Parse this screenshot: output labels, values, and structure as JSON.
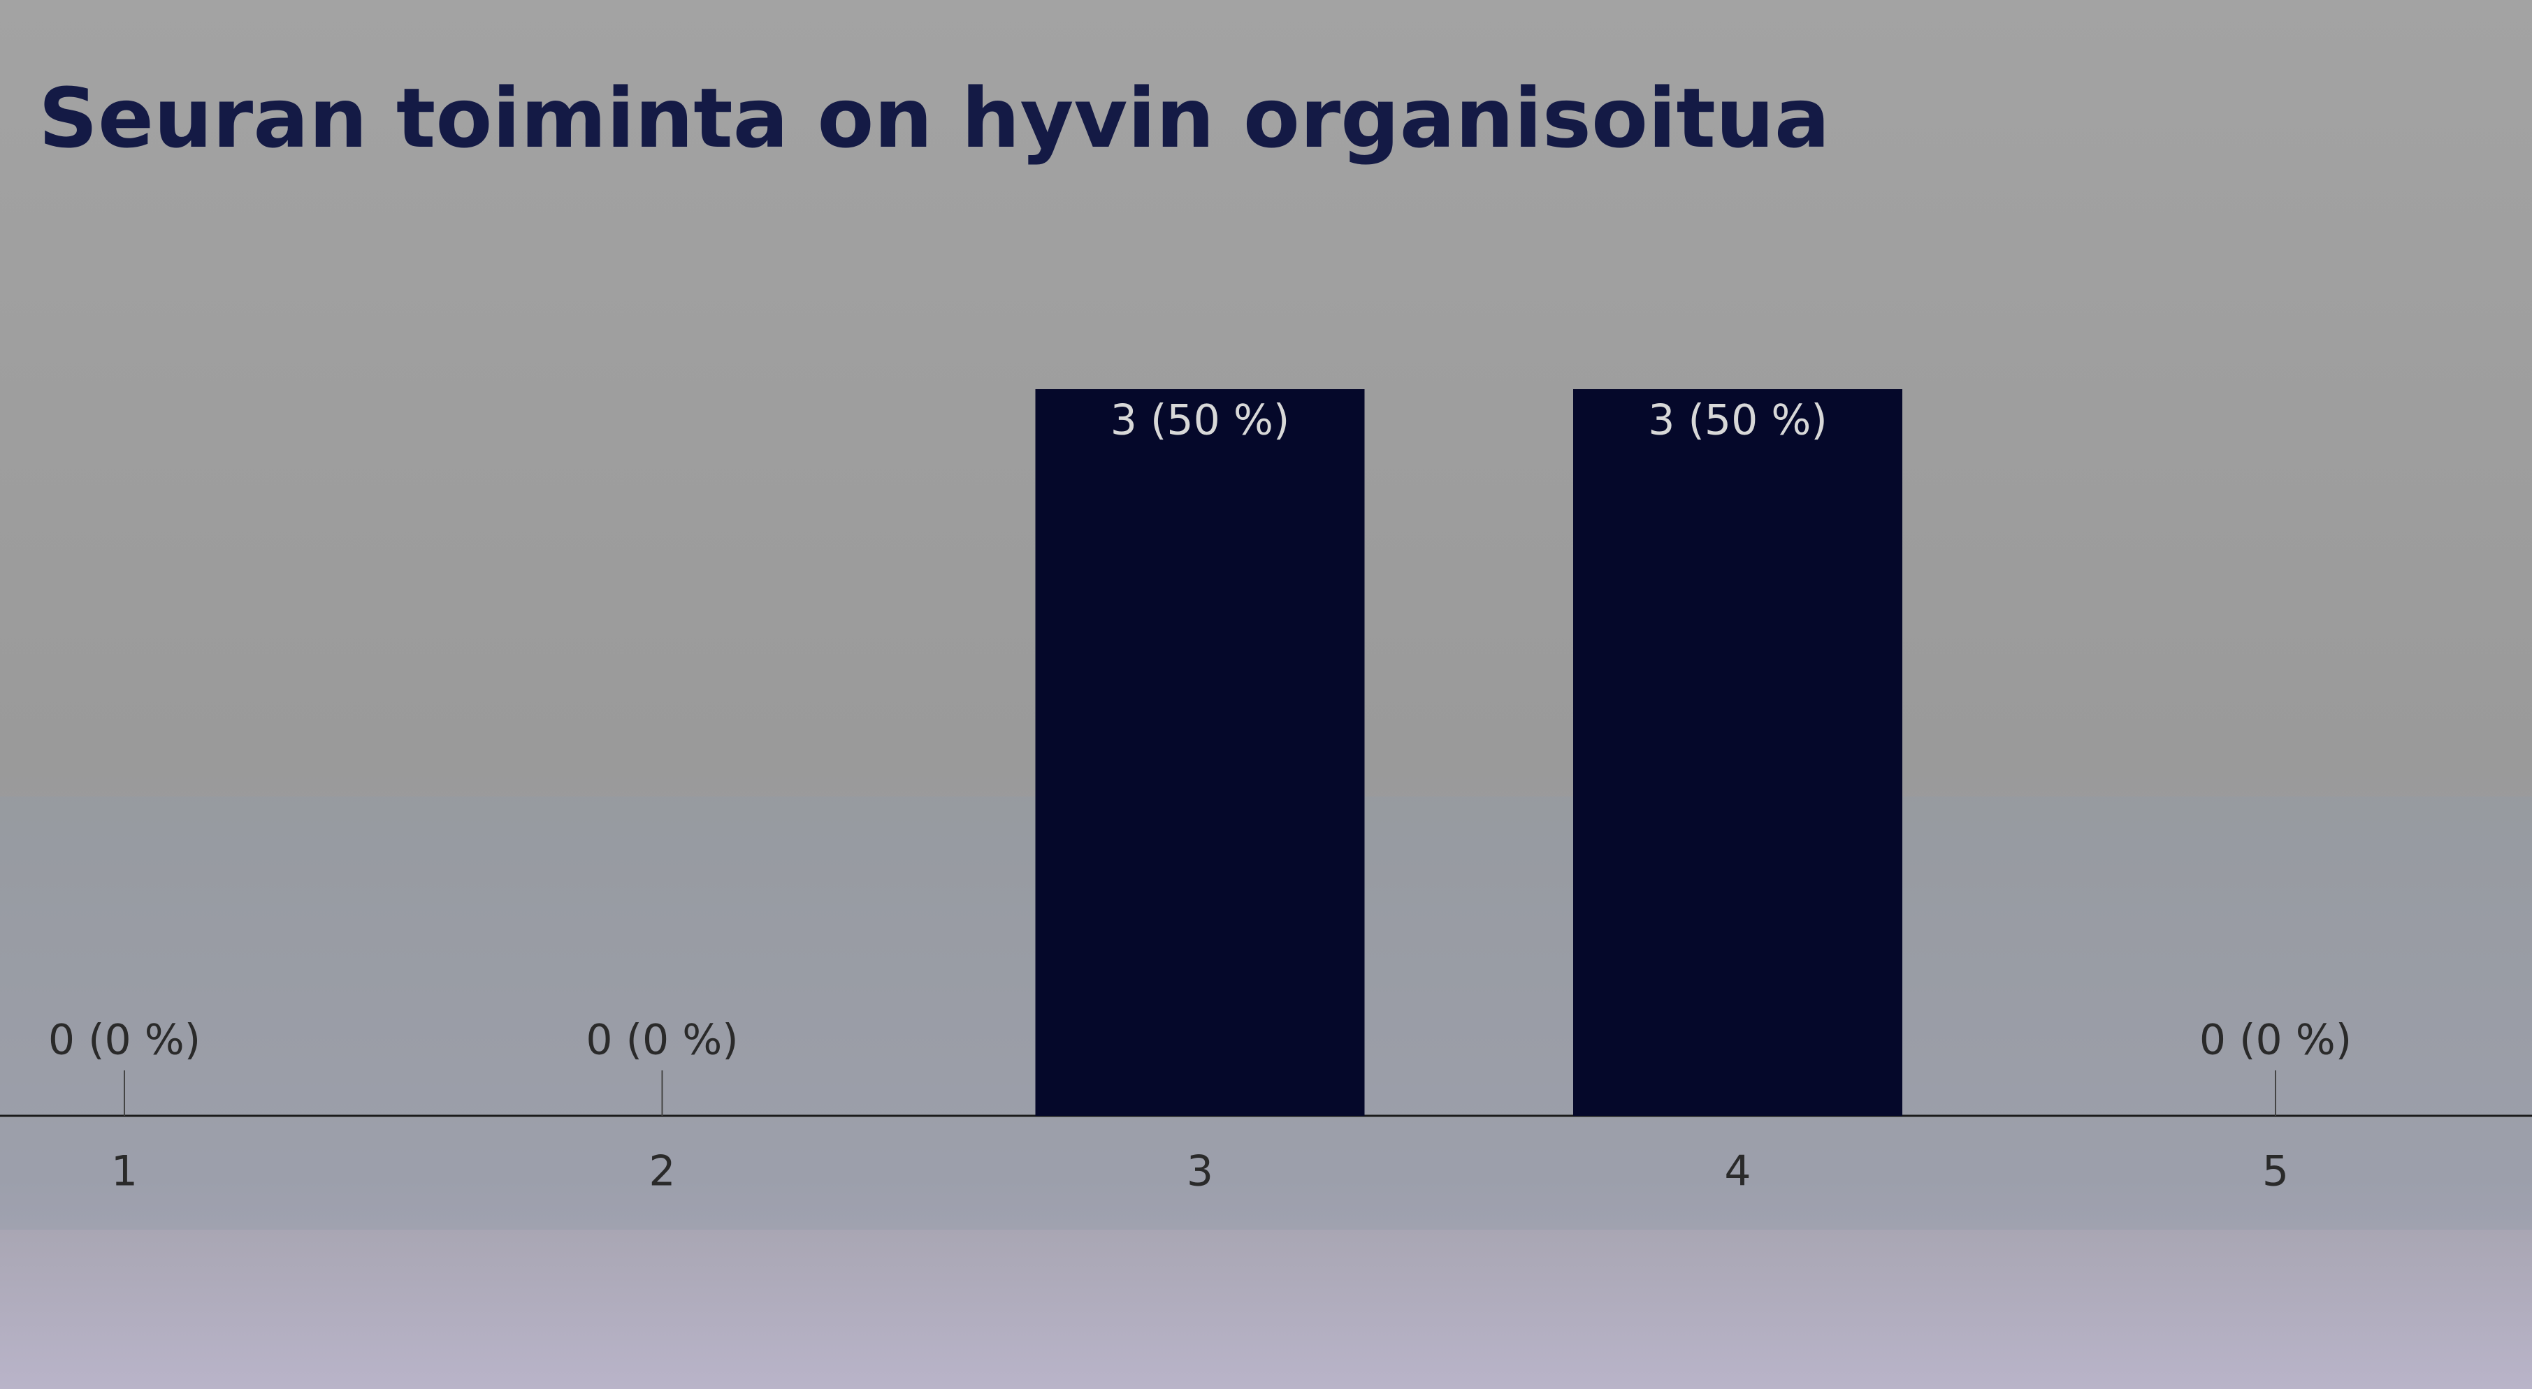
{
  "chart_data": {
    "type": "bar",
    "title": "Seuran toiminta on hyvin organisoitua",
    "categories": [
      "1",
      "2",
      "3",
      "4",
      "5"
    ],
    "values": [
      0,
      0,
      3,
      3,
      0
    ],
    "value_labels": [
      "0 (0 %)",
      "0 (0 %)",
      "3 (50 %)",
      "3 (50 %)",
      "0 (0 %)"
    ],
    "color": "#05082a"
  }
}
